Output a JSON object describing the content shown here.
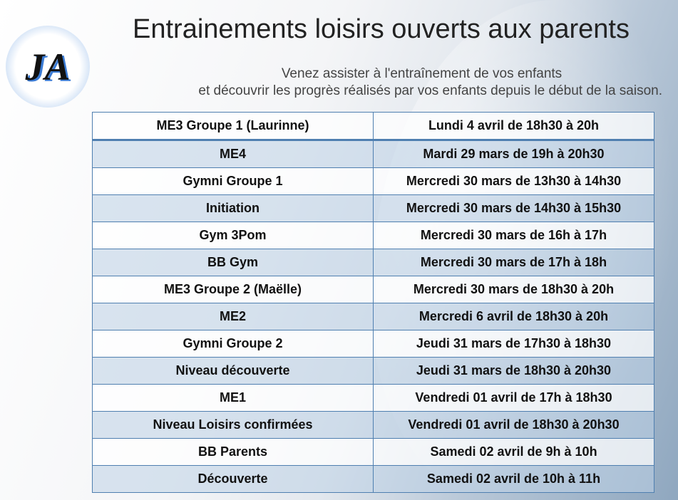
{
  "title": "Entrainements loisirs ouverts aux parents",
  "subtitle": {
    "line1": "Venez assister à l'entraînement de vos enfants",
    "line2": "et découvrir les progrès réalisés par vos enfants depuis le début de la saison."
  },
  "logo": {
    "text": "JA"
  },
  "rows": [
    {
      "group": "ME3 Groupe 1 (Laurinne)",
      "schedule": "Lundi 4 avril de 18h30 à 20h"
    },
    {
      "group": "ME4",
      "schedule": "Mardi 29 mars de 19h à 20h30"
    },
    {
      "group": "Gymni Groupe 1",
      "schedule": "Mercredi 30 mars de 13h30 à 14h30"
    },
    {
      "group": "Initiation",
      "schedule": "Mercredi 30 mars de 14h30 à 15h30"
    },
    {
      "group": "Gym 3Pom",
      "schedule": "Mercredi 30 mars de 16h à 17h"
    },
    {
      "group": "BB Gym",
      "schedule": "Mercredi 30 mars de 17h à 18h"
    },
    {
      "group": "ME3 Groupe 2 (Maëlle)",
      "schedule": "Mercredi 30 mars de 18h30 à 20h"
    },
    {
      "group": "ME2",
      "schedule": "Mercredi 6 avril de 18h30 à 20h"
    },
    {
      "group": "Gymni Groupe 2",
      "schedule": "Jeudi 31 mars de 17h30 à 18h30"
    },
    {
      "group": "Niveau découverte",
      "schedule": "Jeudi 31 mars de 18h30 à 20h30"
    },
    {
      "group": "ME1",
      "schedule": "Vendredi 01 avril de 17h à 18h30"
    },
    {
      "group": "Niveau Loisirs confirmées",
      "schedule": "Vendredi 01 avril de 18h30 à 20h30"
    },
    {
      "group": "BB Parents",
      "schedule": "Samedi 02 avril de 9h à 10h"
    },
    {
      "group": "Découverte",
      "schedule": "Samedi 02 avril de 10h à 11h"
    }
  ],
  "colors": {
    "border": "#4f7fb0",
    "row_alt": "#c8d8e8"
  }
}
